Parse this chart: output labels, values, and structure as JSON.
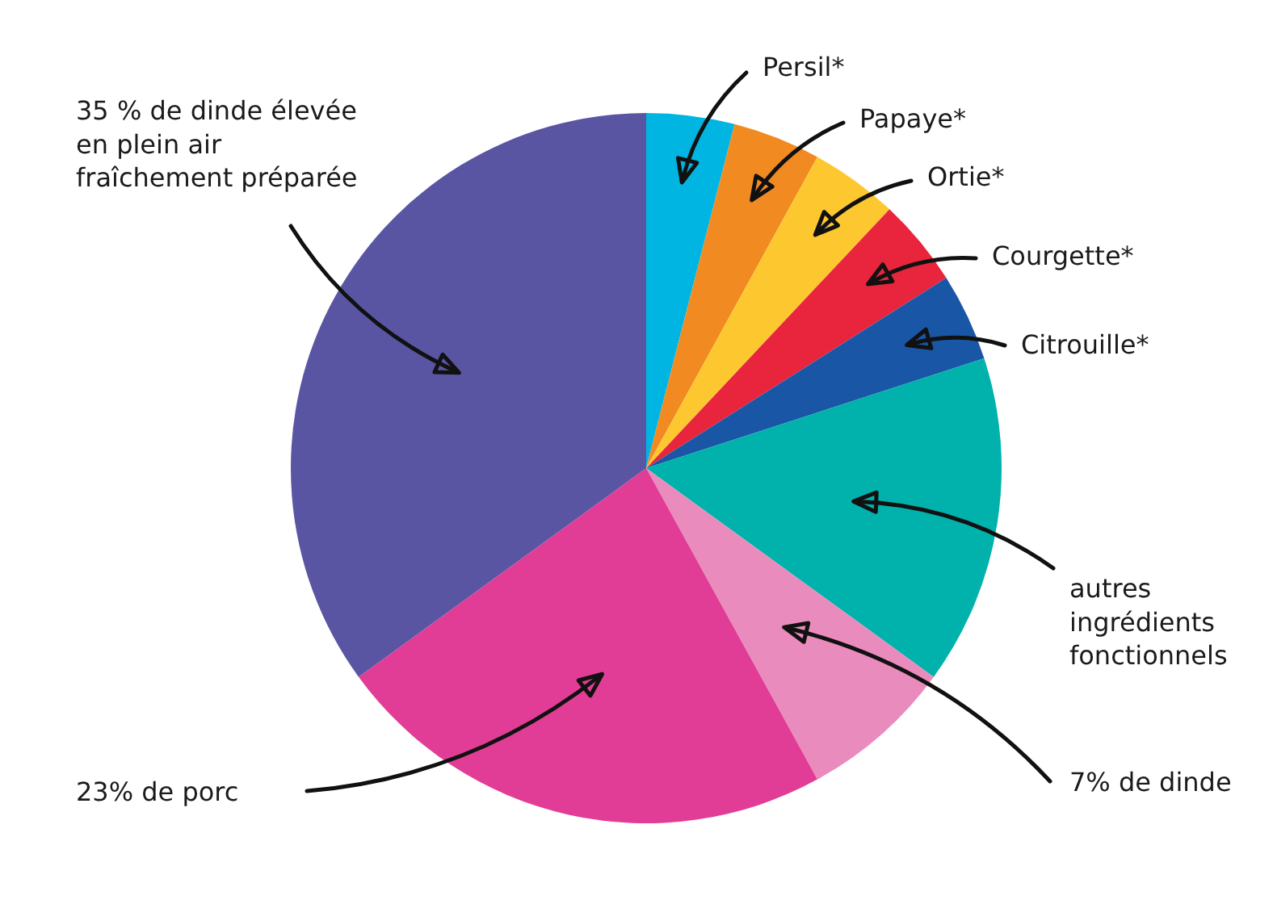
{
  "chart_data": {
    "type": "pie",
    "categories": [
      "Persil*",
      "Papaye*",
      "Ortie*",
      "Courgette*",
      "Citrouille*",
      "autres ingrédients fonctionnels",
      "7% de dinde",
      "23% de porc",
      "35 % de dinde élevée en plein air fraîchement préparée"
    ],
    "values": [
      4,
      4,
      4,
      4,
      4,
      15,
      7,
      23,
      35
    ],
    "colors": [
      "#00b5e2",
      "#f28a22",
      "#fdc82f",
      "#e8253c",
      "#1a56a6",
      "#00b2ab",
      "#e98cbd",
      "#e23d96",
      "#5a55a3"
    ],
    "legend": false
  }
}
